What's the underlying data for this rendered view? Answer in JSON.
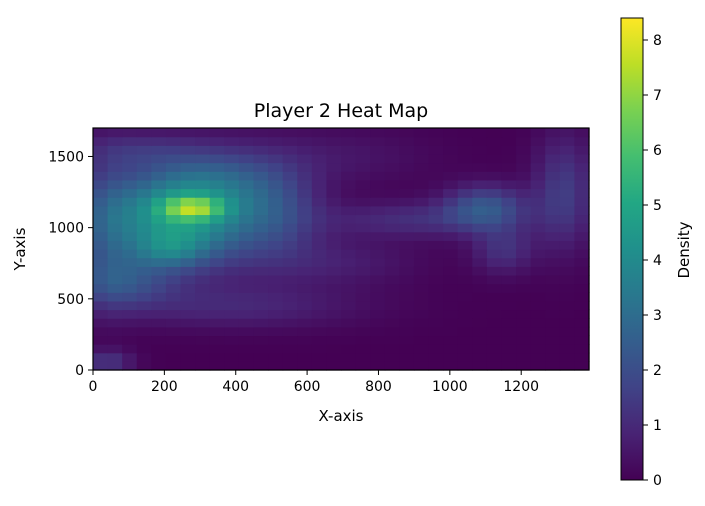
{
  "chart_data": {
    "type": "heatmap",
    "title": "Player 2 Heat Map",
    "xlabel": "X-axis",
    "ylabel": "Y-axis",
    "xlim": [
      0,
      1390
    ],
    "ylim": [
      0,
      1700
    ],
    "x_ticks": [
      0,
      200,
      400,
      600,
      800,
      1000,
      1200
    ],
    "y_ticks": [
      0,
      500,
      1000,
      1500
    ],
    "colorbar": {
      "label": "Density",
      "range": [
        0,
        8.4
      ],
      "ticks": [
        0,
        1,
        2,
        3,
        4,
        5,
        6,
        7,
        8
      ],
      "colormap": "viridis"
    },
    "grid": false,
    "legend": "none",
    "grid_shape": [
      34,
      28
    ],
    "density_blobs": [
      {
        "x": 280,
        "y": 1140,
        "sx": 60,
        "sy": 55,
        "peak": 3.0
      },
      {
        "x": 240,
        "y": 1080,
        "sx": 150,
        "sy": 240,
        "peak": 4.6
      },
      {
        "x": 210,
        "y": 850,
        "sx": 70,
        "sy": 90,
        "peak": 1.3
      },
      {
        "x": 360,
        "y": 1350,
        "sx": 120,
        "sy": 170,
        "peak": 1.2
      },
      {
        "x": 520,
        "y": 1120,
        "sx": 90,
        "sy": 240,
        "peak": 1.4
      },
      {
        "x": 80,
        "y": 620,
        "sx": 100,
        "sy": 120,
        "peak": 1.6
      },
      {
        "x": 30,
        "y": 1000,
        "sx": 60,
        "sy": 350,
        "peak": 1.2
      },
      {
        "x": 400,
        "y": 450,
        "sx": 250,
        "sy": 110,
        "peak": 0.9
      },
      {
        "x": 1100,
        "y": 1150,
        "sx": 80,
        "sy": 110,
        "peak": 2.1
      },
      {
        "x": 1150,
        "y": 850,
        "sx": 60,
        "sy": 120,
        "peak": 1.2
      },
      {
        "x": 900,
        "y": 1060,
        "sx": 180,
        "sy": 90,
        "peak": 1.1
      },
      {
        "x": 1320,
        "y": 1250,
        "sx": 60,
        "sy": 280,
        "peak": 1.5
      },
      {
        "x": 680,
        "y": 760,
        "sx": 160,
        "sy": 120,
        "peak": 0.7
      },
      {
        "x": 700,
        "y": 1500,
        "sx": 170,
        "sy": 140,
        "peak": 0.5
      },
      {
        "x": 40,
        "y": 60,
        "sx": 50,
        "sy": 60,
        "peak": 1.3
      },
      {
        "x": 120,
        "y": 1550,
        "sx": 110,
        "sy": 90,
        "peak": 0.8
      }
    ]
  }
}
